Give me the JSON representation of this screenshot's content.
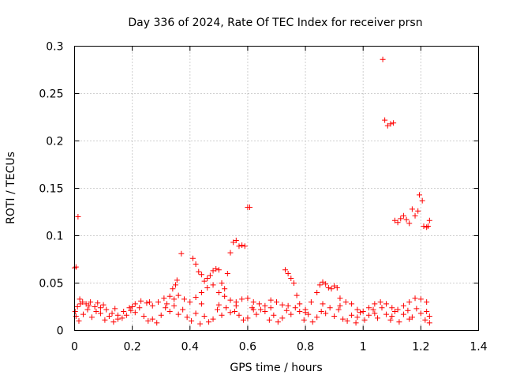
{
  "chart_data": {
    "type": "scatter",
    "title": "Day 336 of 2024, Rate Of TEC Index for receiver prsn",
    "xlabel": "GPS time / hours",
    "ylabel": "ROTI / TECUs",
    "xlim": [
      0,
      1.4
    ],
    "ylim": [
      0,
      0.3
    ],
    "grid": true,
    "x_ticks": [
      "0",
      "0.2",
      "0.4",
      "0.6",
      "0.8",
      "1",
      "1.2",
      "1.4"
    ],
    "x_tick_values": [
      0,
      0.2,
      0.4,
      0.6,
      0.8,
      1.0,
      1.2,
      1.4
    ],
    "y_ticks": [
      "0",
      "0.05",
      "0.1",
      "0.15",
      "0.2",
      "0.25",
      "0.3"
    ],
    "y_tick_values": [
      0,
      0.05,
      0.1,
      0.15,
      0.2,
      0.25,
      0.3
    ],
    "marker": "+",
    "marker_color": "#ff0000",
    "series": [
      {
        "name": "ROTI",
        "points": [
          [
            0.0,
            0.066
          ],
          [
            0.005,
            0.067
          ],
          [
            0.012,
            0.12
          ],
          [
            0.002,
            0.02
          ],
          [
            0.01,
            0.025
          ],
          [
            0.018,
            0.033
          ],
          [
            0.028,
            0.03
          ],
          [
            0.04,
            0.028
          ],
          [
            0.055,
            0.03
          ],
          [
            0.07,
            0.025
          ],
          [
            0.09,
            0.024
          ],
          [
            0.11,
            0.022
          ],
          [
            0.13,
            0.018
          ],
          [
            0.15,
            0.016
          ],
          [
            0.17,
            0.02
          ],
          [
            0.19,
            0.024
          ],
          [
            0.21,
            0.028
          ],
          [
            0.23,
            0.031
          ],
          [
            0.25,
            0.029
          ],
          [
            0.27,
            0.026
          ],
          [
            0.29,
            0.03
          ],
          [
            0.31,
            0.034
          ],
          [
            0.33,
            0.036
          ],
          [
            0.345,
            0.033
          ],
          [
            0.36,
            0.037
          ],
          [
            0.37,
            0.081
          ],
          [
            0.35,
            0.048
          ],
          [
            0.355,
            0.053
          ],
          [
            0.34,
            0.044
          ],
          [
            0.41,
            0.076
          ],
          [
            0.42,
            0.07
          ],
          [
            0.43,
            0.062
          ],
          [
            0.44,
            0.059
          ],
          [
            0.45,
            0.052
          ],
          [
            0.46,
            0.055
          ],
          [
            0.47,
            0.058
          ],
          [
            0.48,
            0.063
          ],
          [
            0.49,
            0.065
          ],
          [
            0.5,
            0.064
          ],
          [
            0.51,
            0.05
          ],
          [
            0.52,
            0.044
          ],
          [
            0.53,
            0.06
          ],
          [
            0.54,
            0.082
          ],
          [
            0.55,
            0.093
          ],
          [
            0.56,
            0.095
          ],
          [
            0.57,
            0.089
          ],
          [
            0.58,
            0.09
          ],
          [
            0.59,
            0.089
          ],
          [
            0.6,
            0.13
          ],
          [
            0.607,
            0.13
          ],
          [
            0.4,
            0.03
          ],
          [
            0.42,
            0.035
          ],
          [
            0.44,
            0.04
          ],
          [
            0.46,
            0.045
          ],
          [
            0.48,
            0.048
          ],
          [
            0.5,
            0.04
          ],
          [
            0.52,
            0.036
          ],
          [
            0.54,
            0.032
          ],
          [
            0.56,
            0.03
          ],
          [
            0.58,
            0.033
          ],
          [
            0.6,
            0.034
          ],
          [
            0.62,
            0.03
          ],
          [
            0.64,
            0.028
          ],
          [
            0.66,
            0.026
          ],
          [
            0.68,
            0.032
          ],
          [
            0.7,
            0.03
          ],
          [
            0.72,
            0.027
          ],
          [
            0.73,
            0.064
          ],
          [
            0.74,
            0.06
          ],
          [
            0.75,
            0.055
          ],
          [
            0.76,
            0.05
          ],
          [
            0.77,
            0.037
          ],
          [
            0.78,
            0.028
          ],
          [
            0.8,
            0.022
          ],
          [
            0.82,
            0.03
          ],
          [
            0.84,
            0.04
          ],
          [
            0.85,
            0.048
          ],
          [
            0.86,
            0.051
          ],
          [
            0.87,
            0.049
          ],
          [
            0.88,
            0.045
          ],
          [
            0.89,
            0.044
          ],
          [
            0.9,
            0.047
          ],
          [
            0.91,
            0.045
          ],
          [
            0.92,
            0.034
          ],
          [
            0.94,
            0.03
          ],
          [
            0.96,
            0.028
          ],
          [
            0.98,
            0.022
          ],
          [
            1.0,
            0.02
          ],
          [
            1.02,
            0.024
          ],
          [
            1.04,
            0.028
          ],
          [
            1.06,
            0.03
          ],
          [
            1.08,
            0.028
          ],
          [
            1.1,
            0.024
          ],
          [
            1.12,
            0.022
          ],
          [
            1.14,
            0.026
          ],
          [
            1.16,
            0.03
          ],
          [
            1.18,
            0.034
          ],
          [
            1.2,
            0.033
          ],
          [
            1.22,
            0.03
          ],
          [
            1.068,
            0.286
          ],
          [
            1.075,
            0.222
          ],
          [
            1.085,
            0.216
          ],
          [
            1.095,
            0.218
          ],
          [
            1.105,
            0.219
          ],
          [
            1.11,
            0.116
          ],
          [
            1.12,
            0.114
          ],
          [
            1.13,
            0.118
          ],
          [
            1.14,
            0.121
          ],
          [
            1.15,
            0.117
          ],
          [
            1.16,
            0.113
          ],
          [
            1.17,
            0.128
          ],
          [
            1.18,
            0.121
          ],
          [
            1.19,
            0.126
          ],
          [
            1.195,
            0.143
          ],
          [
            1.205,
            0.137
          ],
          [
            1.21,
            0.11
          ],
          [
            1.22,
            0.109
          ],
          [
            1.225,
            0.11
          ],
          [
            1.23,
            0.116
          ],
          [
            0.005,
            0.015
          ],
          [
            0.03,
            0.017
          ],
          [
            0.06,
            0.014
          ],
          [
            0.09,
            0.018
          ],
          [
            0.12,
            0.015
          ],
          [
            0.15,
            0.012
          ],
          [
            0.18,
            0.016
          ],
          [
            0.21,
            0.019
          ],
          [
            0.24,
            0.015
          ],
          [
            0.27,
            0.012
          ],
          [
            0.3,
            0.016
          ],
          [
            0.33,
            0.02
          ],
          [
            0.36,
            0.017
          ],
          [
            0.39,
            0.014
          ],
          [
            0.42,
            0.018
          ],
          [
            0.45,
            0.015
          ],
          [
            0.48,
            0.012
          ],
          [
            0.51,
            0.016
          ],
          [
            0.54,
            0.019
          ],
          [
            0.57,
            0.016
          ],
          [
            0.6,
            0.013
          ],
          [
            0.63,
            0.017
          ],
          [
            0.66,
            0.02
          ],
          [
            0.69,
            0.016
          ],
          [
            0.72,
            0.013
          ],
          [
            0.75,
            0.017
          ],
          [
            0.78,
            0.02
          ],
          [
            0.81,
            0.017
          ],
          [
            0.84,
            0.014
          ],
          [
            0.87,
            0.018
          ],
          [
            0.9,
            0.015
          ],
          [
            0.93,
            0.012
          ],
          [
            0.96,
            0.016
          ],
          [
            0.99,
            0.019
          ],
          [
            1.02,
            0.016
          ],
          [
            1.05,
            0.013
          ],
          [
            1.08,
            0.017
          ],
          [
            1.11,
            0.02
          ],
          [
            1.14,
            0.017
          ],
          [
            1.17,
            0.014
          ],
          [
            1.2,
            0.018
          ],
          [
            1.23,
            0.015
          ],
          [
            0.015,
            0.01
          ],
          [
            0.045,
            0.022
          ],
          [
            0.075,
            0.02
          ],
          [
            0.105,
            0.011
          ],
          [
            0.135,
            0.009
          ],
          [
            0.165,
            0.013
          ],
          [
            0.195,
            0.021
          ],
          [
            0.225,
            0.024
          ],
          [
            0.255,
            0.01
          ],
          [
            0.285,
            0.008
          ],
          [
            0.315,
            0.024
          ],
          [
            0.345,
            0.026
          ],
          [
            0.375,
            0.022
          ],
          [
            0.405,
            0.01
          ],
          [
            0.435,
            0.007
          ],
          [
            0.465,
            0.009
          ],
          [
            0.495,
            0.022
          ],
          [
            0.525,
            0.024
          ],
          [
            0.555,
            0.02
          ],
          [
            0.585,
            0.011
          ],
          [
            0.615,
            0.024
          ],
          [
            0.645,
            0.022
          ],
          [
            0.675,
            0.011
          ],
          [
            0.705,
            0.009
          ],
          [
            0.735,
            0.021
          ],
          [
            0.765,
            0.024
          ],
          [
            0.795,
            0.011
          ],
          [
            0.825,
            0.009
          ],
          [
            0.855,
            0.02
          ],
          [
            0.885,
            0.024
          ],
          [
            0.915,
            0.022
          ],
          [
            0.945,
            0.01
          ],
          [
            0.975,
            0.008
          ],
          [
            1.005,
            0.011
          ],
          [
            1.035,
            0.022
          ],
          [
            1.065,
            0.024
          ],
          [
            1.095,
            0.011
          ],
          [
            1.125,
            0.009
          ],
          [
            1.155,
            0.021
          ],
          [
            1.185,
            0.023
          ],
          [
            1.215,
            0.011
          ],
          [
            1.23,
            0.008
          ],
          [
            0.02,
            0.028
          ],
          [
            0.05,
            0.026
          ],
          [
            0.08,
            0.029
          ],
          [
            0.1,
            0.027
          ],
          [
            0.14,
            0.023
          ],
          [
            0.2,
            0.025
          ],
          [
            0.26,
            0.03
          ],
          [
            0.32,
            0.028
          ],
          [
            0.38,
            0.033
          ],
          [
            0.44,
            0.028
          ],
          [
            0.5,
            0.027
          ],
          [
            0.56,
            0.026
          ],
          [
            0.62,
            0.022
          ],
          [
            0.68,
            0.024
          ],
          [
            0.74,
            0.026
          ],
          [
            0.8,
            0.019
          ],
          [
            0.86,
            0.028
          ],
          [
            0.92,
            0.026
          ],
          [
            0.98,
            0.014
          ],
          [
            1.04,
            0.018
          ],
          [
            1.1,
            0.015
          ],
          [
            1.16,
            0.012
          ],
          [
            1.22,
            0.02
          ]
        ]
      }
    ]
  }
}
